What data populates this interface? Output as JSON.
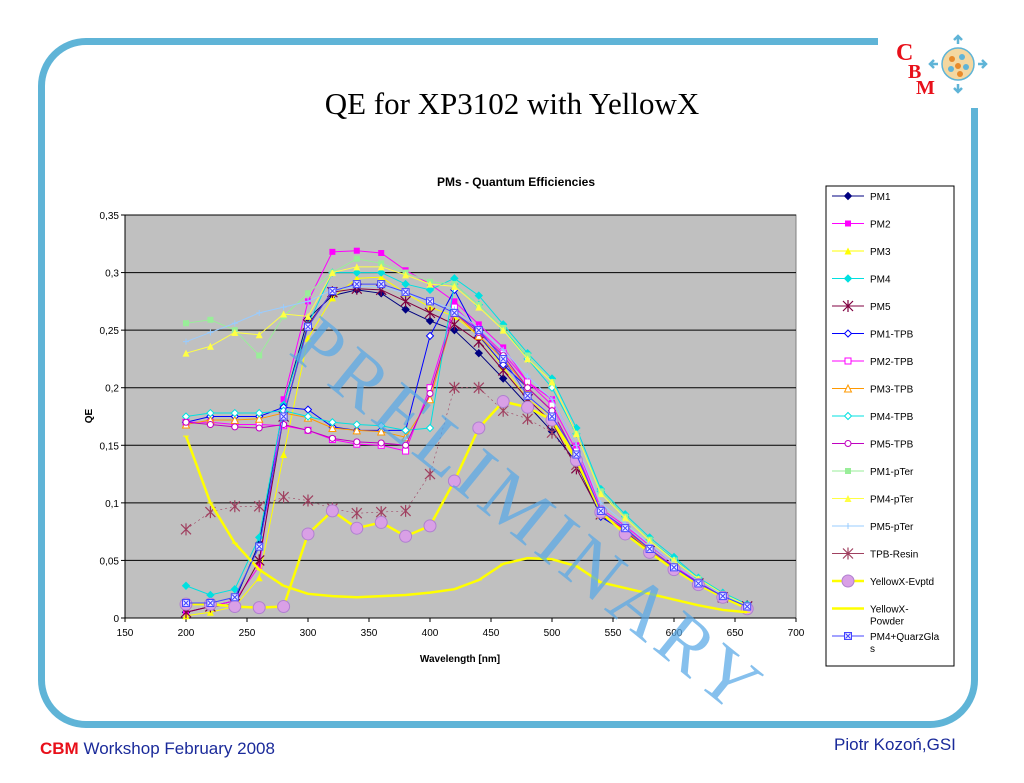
{
  "slide": {
    "title": "QE for XP3102 with YellowX",
    "watermark": "PRELIMINARY",
    "footer_brand": "CBM",
    "footer_text": "Workshop February 2008",
    "footer_author": "Piotr Kozoń,GSI",
    "logo_letters": [
      "C",
      "B",
      "M"
    ],
    "colors": {
      "frame": "#5fb4d7",
      "plot_bg": "#c0c0c0",
      "watermark": "#58a8e6",
      "footer": "#1a2a9a",
      "brand": "#e8101a"
    }
  },
  "chart_data": {
    "type": "line",
    "title": "PMs - Quantum Efficiencies",
    "xlabel": "Wavelength [nm]",
    "ylabel": "QE",
    "xlim": [
      150,
      700
    ],
    "ylim": [
      0,
      0.35
    ],
    "x_ticks": [
      "150",
      "200",
      "250",
      "300",
      "350",
      "400",
      "450",
      "500",
      "550",
      "600",
      "650",
      "700"
    ],
    "y_ticks": [
      "0",
      "0,05",
      "0,1",
      "0,15",
      "0,2",
      "0,25",
      "0,3",
      "0,35"
    ],
    "grid": "horizontal",
    "legend_position": "right",
    "x": [
      200,
      220,
      240,
      260,
      280,
      300,
      320,
      340,
      360,
      380,
      400,
      420,
      440,
      460,
      480,
      500,
      520,
      540,
      560,
      580,
      600,
      620,
      640,
      660
    ],
    "series": [
      {
        "name": "PM1",
        "color": "#000080",
        "marker": "diamond",
        "values": [
          0.005,
          0.01,
          0.015,
          0.065,
          0.185,
          0.26,
          0.28,
          0.285,
          0.282,
          0.268,
          0.258,
          0.25,
          0.23,
          0.208,
          0.185,
          0.162,
          0.135,
          0.088,
          0.075,
          0.058,
          0.043,
          0.03,
          0.018,
          0.01
        ]
      },
      {
        "name": "PM2",
        "color": "#ff00ff",
        "marker": "square",
        "values": [
          0.005,
          0.01,
          0.015,
          0.045,
          0.19,
          0.275,
          0.318,
          0.319,
          0.317,
          0.302,
          0.29,
          0.275,
          0.255,
          0.235,
          0.205,
          0.19,
          0.15,
          0.095,
          0.08,
          0.063,
          0.047,
          0.032,
          0.02,
          0.011
        ]
      },
      {
        "name": "PM3",
        "color": "#ffff00",
        "marker": "triangle",
        "values": [
          0.002,
          0.005,
          0.01,
          0.035,
          0.142,
          0.243,
          0.278,
          0.295,
          0.296,
          0.282,
          0.27,
          0.262,
          0.245,
          0.218,
          0.19,
          0.175,
          0.14,
          0.09,
          0.075,
          0.06,
          0.045,
          0.03,
          0.02,
          0.01
        ]
      },
      {
        "name": "PM4",
        "color": "#00e0e0",
        "marker": "diamond",
        "values": [
          0.028,
          0.02,
          0.025,
          0.07,
          0.185,
          0.255,
          0.3,
          0.3,
          0.3,
          0.29,
          0.285,
          0.295,
          0.28,
          0.255,
          0.23,
          0.208,
          0.165,
          0.112,
          0.09,
          0.07,
          0.053,
          0.035,
          0.022,
          0.012
        ]
      },
      {
        "name": "PM5",
        "color": "#800040",
        "marker": "star",
        "values": [
          0.005,
          0.01,
          0.012,
          0.05,
          0.175,
          0.255,
          0.283,
          0.286,
          0.285,
          0.275,
          0.265,
          0.255,
          0.24,
          0.215,
          0.19,
          0.17,
          0.13,
          0.09,
          0.075,
          0.058,
          0.043,
          0.03,
          0.018,
          0.01
        ]
      },
      {
        "name": "PM1-TPB",
        "color": "#0000ff",
        "marker": "diamond-open",
        "values": [
          0.17,
          0.175,
          0.175,
          0.175,
          0.183,
          0.181,
          0.166,
          0.163,
          0.163,
          0.163,
          0.245,
          0.285,
          0.245,
          0.22,
          0.2,
          0.18,
          0.14,
          0.088,
          0.075,
          0.058,
          0.043,
          0.03,
          0.018,
          0.01
        ]
      },
      {
        "name": "PM2-TPB",
        "color": "#ff00ff",
        "marker": "square-open",
        "values": [
          0.17,
          0.17,
          0.168,
          0.168,
          0.167,
          0.163,
          0.155,
          0.151,
          0.15,
          0.145,
          0.2,
          0.27,
          0.25,
          0.23,
          0.205,
          0.185,
          0.145,
          0.092,
          0.078,
          0.06,
          0.045,
          0.031,
          0.019,
          0.01
        ]
      },
      {
        "name": "PM3-TPB",
        "color": "#ff9900",
        "marker": "triangle-open",
        "values": [
          0.168,
          0.172,
          0.172,
          0.173,
          0.178,
          0.174,
          0.165,
          0.163,
          0.162,
          0.157,
          0.19,
          0.265,
          0.245,
          0.225,
          0.2,
          0.18,
          0.14,
          0.09,
          0.076,
          0.059,
          0.044,
          0.03,
          0.019,
          0.01
        ]
      },
      {
        "name": "PM4-TPB",
        "color": "#00e0e0",
        "marker": "diamond-open",
        "values": [
          0.175,
          0.178,
          0.178,
          0.178,
          0.18,
          0.175,
          0.17,
          0.168,
          0.167,
          0.163,
          0.165,
          0.29,
          0.272,
          0.252,
          0.225,
          0.2,
          0.16,
          0.11,
          0.088,
          0.068,
          0.051,
          0.034,
          0.021,
          0.011
        ]
      },
      {
        "name": "PM5-TPB",
        "color": "#c000c0",
        "marker": "circle-open",
        "values": [
          0.17,
          0.168,
          0.166,
          0.165,
          0.168,
          0.163,
          0.156,
          0.153,
          0.152,
          0.15,
          0.195,
          0.265,
          0.248,
          0.228,
          0.2,
          0.18,
          0.14,
          0.09,
          0.077,
          0.06,
          0.044,
          0.031,
          0.019,
          0.01
        ]
      },
      {
        "name": "PM1-pTer",
        "color": "#99ee99",
        "marker": "square",
        "values": [
          0.256,
          0.259,
          0.25,
          0.228,
          0.262,
          0.282,
          0.3,
          0.312,
          0.308,
          0.3,
          0.292,
          0.29,
          0.272,
          0.252,
          0.228,
          0.205,
          0.16,
          0.11,
          0.088,
          0.068,
          0.05,
          0.034,
          0.021,
          0.011
        ]
      },
      {
        "name": "PM4-pTer",
        "color": "#ffff44",
        "marker": "triangle",
        "values": [
          0.23,
          0.236,
          0.248,
          0.246,
          0.264,
          0.262,
          0.3,
          0.305,
          0.305,
          0.298,
          0.29,
          0.288,
          0.27,
          0.25,
          0.225,
          0.205,
          0.16,
          0.108,
          0.087,
          0.067,
          0.05,
          0.034,
          0.021,
          0.011
        ]
      },
      {
        "name": "PM5-pTer",
        "color": "#99ccff",
        "marker": "cross",
        "values": [
          0.24,
          0.248,
          0.256,
          0.265,
          0.27,
          0.275,
          0.285,
          0.288,
          0.288,
          0.282,
          0.275,
          0.268,
          0.252,
          0.233,
          0.21,
          0.19,
          0.15,
          0.1,
          0.082,
          0.064,
          0.047,
          0.032,
          0.02,
          0.01
        ]
      },
      {
        "name": "TPB-Resin",
        "color": "#a04060",
        "marker": "star",
        "values": [
          0.077,
          0.092,
          0.097,
          0.097,
          0.105,
          0.102,
          0.095,
          0.091,
          0.092,
          0.093,
          0.125,
          0.2,
          0.2,
          0.18,
          0.173,
          0.161,
          0.133,
          null,
          null,
          null,
          null,
          null,
          null,
          null
        ]
      },
      {
        "name": "YellowX-Evptd",
        "color": "#ffff00",
        "marker": "circle-big",
        "values": [
          0.012,
          0.012,
          0.01,
          0.009,
          0.01,
          0.073,
          0.093,
          0.078,
          0.083,
          0.071,
          0.08,
          0.119,
          0.165,
          0.188,
          0.183,
          0.172,
          0.137,
          0.092,
          0.073,
          0.057,
          0.042,
          0.029,
          0.018,
          0.008
        ]
      },
      {
        "name": "YellowX-Powder",
        "color": "#ffff00",
        "marker": "dash",
        "values": [
          0.158,
          0.1,
          0.065,
          0.042,
          0.028,
          0.021,
          0.019,
          0.018,
          0.019,
          0.02,
          0.022,
          0.025,
          0.033,
          0.047,
          0.052,
          0.051,
          0.045,
          0.031,
          0.026,
          0.021,
          0.016,
          0.011,
          0.007,
          0.005
        ]
      },
      {
        "name": "PM4+QuarzGlas",
        "color": "#4444ff",
        "marker": "xbox",
        "values": [
          0.013,
          0.013,
          0.018,
          0.062,
          0.175,
          0.253,
          0.284,
          0.29,
          0.29,
          0.283,
          0.275,
          0.265,
          0.25,
          0.225,
          0.193,
          0.175,
          0.142,
          0.093,
          0.078,
          0.06,
          0.044,
          0.03,
          0.019,
          0.01
        ]
      }
    ]
  }
}
